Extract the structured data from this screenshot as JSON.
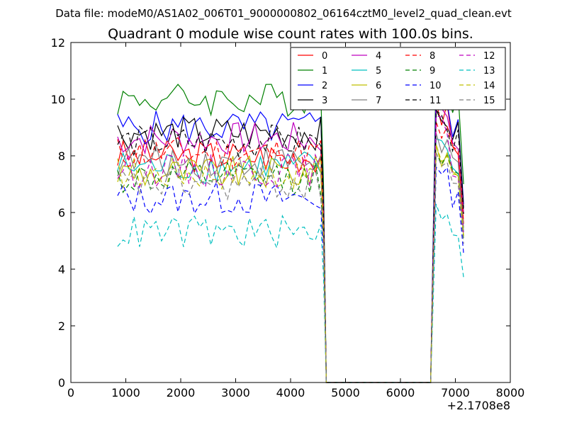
{
  "suptitle": "Data file: modeM0/AS1A02_006T01_9000000802_06164cztM0_level2_quad_clean.evt",
  "chart_data": {
    "type": "line",
    "title": "Quadrant 0 module wise count rates with 100.0s bins.",
    "xlabel": "",
    "ylabel": "",
    "xlim": [
      0,
      8000
    ],
    "ylim": [
      0,
      12
    ],
    "x_offset_label": "+2.1708e8",
    "xticks": [
      "0",
      "1000",
      "2000",
      "3000",
      "4000",
      "5000",
      "6000",
      "7000",
      "8000"
    ],
    "yticks": [
      "0",
      "2",
      "4",
      "6",
      "8",
      "10",
      "12"
    ],
    "legend_position": "top-right",
    "legend_columns": 4,
    "series": [
      {
        "name": "0",
        "color": "#ff0000",
        "dash": "solid",
        "level": 8.0,
        "peak": 9.9
      },
      {
        "name": "1",
        "color": "#008000",
        "dash": "solid",
        "level": 10.0,
        "peak": 11.3
      },
      {
        "name": "2",
        "color": "#0000ff",
        "dash": "solid",
        "level": 9.0,
        "peak": 10.6
      },
      {
        "name": "3",
        "color": "#000000",
        "dash": "solid",
        "level": 8.8,
        "peak": 9.6
      },
      {
        "name": "4",
        "color": "#bf00bf",
        "dash": "solid",
        "level": 8.6,
        "peak": 9.9
      },
      {
        "name": "5",
        "color": "#00bfbf",
        "dash": "solid",
        "level": 7.6,
        "peak": 8.6
      },
      {
        "name": "6",
        "color": "#bfbf00",
        "dash": "solid",
        "level": 7.4,
        "peak": 8.4
      },
      {
        "name": "7",
        "color": "#808080",
        "dash": "solid",
        "level": 7.8,
        "peak": 8.8
      },
      {
        "name": "8",
        "color": "#ff0000",
        "dash": "dashed",
        "level": 8.1,
        "peak": 9.2
      },
      {
        "name": "9",
        "color": "#008000",
        "dash": "dashed",
        "level": 7.2,
        "peak": 8.1
      },
      {
        "name": "10",
        "color": "#0000ff",
        "dash": "dashed",
        "level": 6.5,
        "peak": 7.6
      },
      {
        "name": "11",
        "color": "#000000",
        "dash": "dashed",
        "level": 8.5,
        "peak": 9.6
      },
      {
        "name": "12",
        "color": "#bf00bf",
        "dash": "dashed",
        "level": 7.5,
        "peak": 9.4
      },
      {
        "name": "13",
        "color": "#00bfbf",
        "dash": "dashed",
        "level": 5.3,
        "peak": 6.3
      },
      {
        "name": "14",
        "color": "#bfbf00",
        "dash": "dashed",
        "level": 7.4,
        "peak": 8.4
      },
      {
        "name": "15",
        "color": "#808080",
        "dash": "dashed",
        "level": 7.0,
        "peak": 8.1
      }
    ],
    "x_active_1": [
      850,
      4550
    ],
    "x_gap": [
      4650,
      6550
    ],
    "x_active_2": [
      6650,
      7150
    ],
    "bin_width_s": 100
  }
}
